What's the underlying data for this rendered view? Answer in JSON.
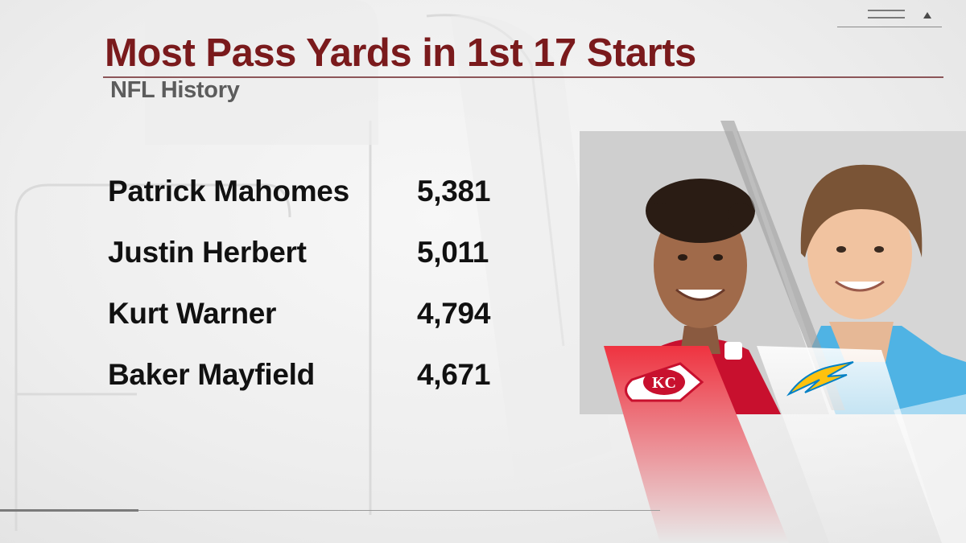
{
  "header": {
    "title": "Most Pass Yards in 1st 17 Starts",
    "subtitle": "NFL History"
  },
  "leaders": [
    {
      "name": "Patrick Mahomes",
      "yards": "5,381"
    },
    {
      "name": "Justin Herbert",
      "yards": "5,011"
    },
    {
      "name": "Kurt Warner",
      "yards": "4,794"
    },
    {
      "name": "Baker Mayfield",
      "yards": "4,671"
    }
  ],
  "teams": {
    "left": {
      "logo_text": "KC",
      "color": "#e31837"
    },
    "right": {
      "color": "#0080c6",
      "bolt_color": "#ffc20e"
    }
  },
  "colors": {
    "title": "#7a1a1c",
    "subtitle": "#5c5c5c",
    "text": "#111111"
  }
}
